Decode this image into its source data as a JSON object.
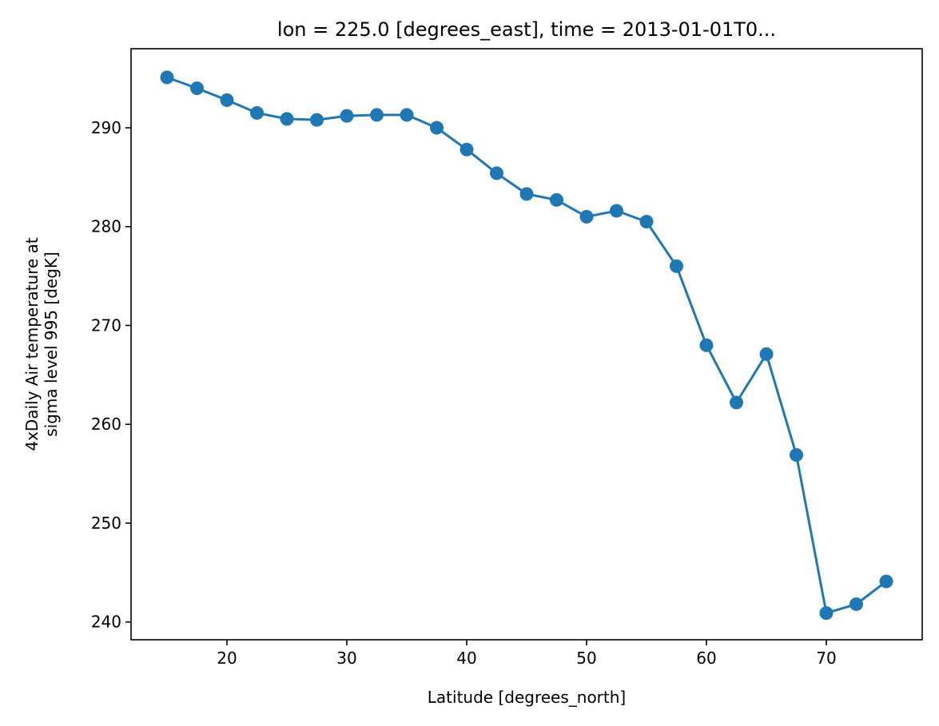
{
  "chart_data": {
    "type": "line",
    "title": "lon = 225.0 [degrees_east], time = 2013-01-01T0...",
    "xlabel": "Latitude [degrees_north]",
    "ylabel_lines": [
      "4xDaily Air temperature at",
      "sigma level 995 [degK]"
    ],
    "xlim": [
      12,
      78
    ],
    "ylim": [
      238.2,
      298.0
    ],
    "xticks": [
      20,
      30,
      40,
      50,
      60,
      70
    ],
    "yticks": [
      240,
      250,
      260,
      270,
      280,
      290
    ],
    "grid": false,
    "color": "#1f77b4",
    "marker": "circle",
    "x": [
      15,
      17.5,
      20,
      22.5,
      25,
      27.5,
      30,
      32.5,
      35,
      37.5,
      40,
      42.5,
      45,
      47.5,
      50,
      52.5,
      55,
      57.5,
      60,
      62.5,
      65,
      67.5,
      70,
      72.5,
      75
    ],
    "y": [
      295.1,
      294.0,
      292.8,
      291.5,
      290.9,
      290.8,
      291.2,
      291.3,
      291.3,
      290.0,
      287.8,
      285.4,
      283.3,
      282.7,
      281.0,
      281.6,
      280.5,
      276.0,
      268.0,
      262.2,
      267.1,
      256.9,
      240.9,
      241.8,
      244.1
    ]
  }
}
